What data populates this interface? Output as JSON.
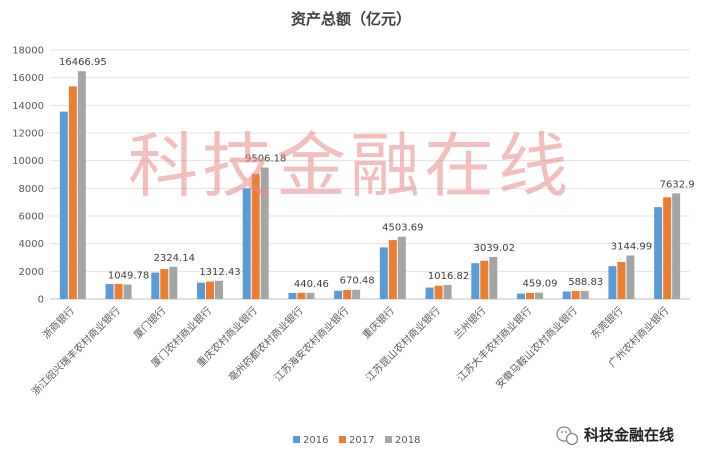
{
  "chart_data": {
    "type": "bar",
    "title": "资产总额（亿元）",
    "categories": [
      "浙商银行",
      "浙江绍兴瑞丰农村商业银行",
      "厦门银行",
      "厦门农村商业银行",
      "重庆农村商业银行",
      "亳州药都农村商业银行",
      "江苏海安农村商业银行",
      "重庆银行",
      "江苏昆山农村商业银行",
      "兰州银行",
      "江苏大丰农村商业银行",
      "安徽马鞍山农村商业银行",
      "东莞银行",
      "广州农村商业银行"
    ],
    "series": [
      {
        "name": "2016",
        "color": "#5b9bd5",
        "values": [
          13550,
          1080,
          1910,
          1180,
          8000,
          440,
          600,
          3730,
          830,
          2590,
          390,
          540,
          2380,
          6640
        ]
      },
      {
        "name": "2017",
        "color": "#ed7d31",
        "values": [
          15370,
          1090,
          2160,
          1260,
          9050,
          450,
          650,
          4260,
          960,
          2760,
          440,
          580,
          2680,
          7350
        ]
      },
      {
        "name": "2018",
        "color": "#a5a5a5",
        "values": [
          16466.95,
          1049.78,
          2324.14,
          1312.43,
          9506.18,
          440.46,
          670.48,
          4503.69,
          1016.82,
          3039.02,
          459.09,
          588.83,
          3144.99,
          7632.9
        ]
      }
    ],
    "data_labels": [
      "16466.95",
      "1049.78",
      "2324.14",
      "1312.43",
      "9506.18",
      "440.46",
      "670.48",
      "4503.69",
      "1016.82",
      "3039.02",
      "459.09",
      "588.83",
      "3144.99",
      "7632.9"
    ],
    "yticks": [
      "0",
      "2000",
      "4000",
      "6000",
      "8000",
      "10000",
      "12000",
      "14000",
      "16000",
      "18000"
    ],
    "ylim": [
      0,
      18000
    ],
    "grid": true,
    "legend": "bottom"
  },
  "watermark": "科技金融在线",
  "brand": {
    "text": "科技金融在线",
    "icon": "wechat-icon"
  }
}
